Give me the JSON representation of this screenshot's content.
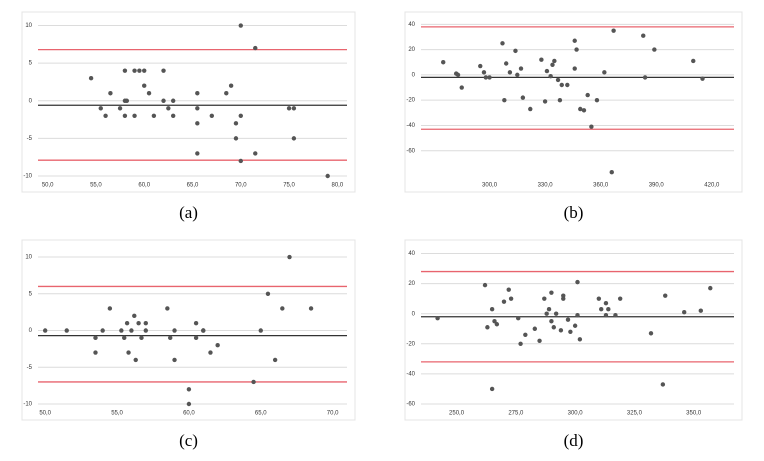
{
  "chart_data": [
    {
      "type": "scatter",
      "label": "(a)",
      "color": "#555555",
      "x": [
        54.5,
        55.5,
        56,
        56.5,
        57.5,
        58,
        58,
        58,
        58.2,
        59,
        59,
        59.5,
        60,
        60,
        60.5,
        61,
        62,
        62,
        62.5,
        63,
        63,
        65.5,
        65.5,
        65.5,
        65.5,
        67,
        68.5,
        69,
        69.5,
        69.5,
        70,
        70,
        70,
        71.5,
        71.5,
        75,
        75.5,
        75.5,
        79
      ],
      "values": [
        3,
        -1,
        -2,
        1,
        -1,
        0,
        4,
        -2,
        0,
        4,
        -2,
        4,
        2,
        4,
        1,
        -2,
        0,
        4,
        -1,
        -2,
        0,
        1,
        -3,
        -7,
        -1,
        -2,
        1,
        2,
        -3,
        -5,
        -2,
        -8,
        10,
        7,
        -7,
        -1,
        -1,
        -5,
        -10
      ],
      "xlim": [
        49,
        81
      ],
      "ylim": [
        -10,
        11
      ],
      "xticks": [
        {
          "value": 50,
          "label": "50,0"
        },
        {
          "value": 55,
          "label": "55,0"
        },
        {
          "value": 60,
          "label": "60,0"
        },
        {
          "value": 65,
          "label": "65,0"
        },
        {
          "value": 70,
          "label": "70,0"
        },
        {
          "value": 75,
          "label": "75,0"
        },
        {
          "value": 80,
          "label": "80,0"
        }
      ],
      "yticks": [
        10,
        5,
        0,
        -5,
        -10
      ],
      "grid": true,
      "reference_lines": [
        {
          "value": 6.8,
          "color": "#e8646e"
        },
        {
          "value": -0.6,
          "color": "#333333"
        },
        {
          "value": -7.9,
          "color": "#e8646e"
        }
      ]
    },
    {
      "type": "scatter",
      "label": "(b)",
      "color": "#555555",
      "x": [
        275,
        282,
        283,
        285,
        295,
        297,
        298,
        300,
        307,
        308,
        309,
        311,
        314,
        315,
        317,
        318,
        322,
        328,
        330,
        331,
        333,
        334,
        335,
        337,
        338,
        339,
        342,
        346,
        346,
        347,
        349,
        351,
        353,
        355,
        358,
        362,
        367,
        366,
        383,
        384,
        389,
        410,
        415
      ],
      "values": [
        10,
        1,
        0,
        -10,
        7,
        2,
        -2,
        -2,
        25,
        -20,
        9,
        2,
        19,
        0,
        5,
        -18,
        -27,
        12,
        -21,
        3,
        -1,
        8,
        11,
        -4,
        -20,
        -8,
        -8,
        27,
        5,
        20,
        -27,
        -28,
        -16,
        -41,
        -20,
        2,
        35,
        -77,
        31,
        -2,
        20,
        11,
        -3
      ],
      "xlim": [
        263,
        432
      ],
      "ylim": [
        -80,
        45
      ],
      "xticks": [
        {
          "value": 300,
          "label": "300,0"
        },
        {
          "value": 330,
          "label": "330,0"
        },
        {
          "value": 360,
          "label": "360,0"
        },
        {
          "value": 390,
          "label": "390,0"
        },
        {
          "value": 420,
          "label": "420,0"
        }
      ],
      "yticks": [
        40,
        20,
        0,
        -20,
        -40,
        -60
      ],
      "grid": true,
      "reference_lines": [
        {
          "value": 38,
          "color": "#e8646e"
        },
        {
          "value": -2,
          "color": "#333333"
        },
        {
          "value": -43,
          "color": "#e8646e"
        }
      ]
    },
    {
      "type": "scatter",
      "label": "(c)",
      "color": "#555555",
      "x": [
        50,
        51.5,
        53.5,
        53.5,
        54,
        54.5,
        55.3,
        55.5,
        55.7,
        55.8,
        56,
        56.2,
        56.3,
        56.5,
        56.7,
        57,
        57,
        58.5,
        58.7,
        59,
        59,
        60,
        60,
        60.5,
        60.5,
        61,
        61,
        61.5,
        62,
        64.5,
        65,
        65.5,
        66,
        66.5,
        67,
        68.5
      ],
      "values": [
        0,
        0,
        -1,
        -3,
        0,
        3,
        0,
        -1,
        1,
        -3,
        0,
        2,
        -4,
        1,
        -1,
        1,
        0,
        3,
        -1,
        -4,
        0,
        -8,
        -10,
        1,
        -1,
        0,
        0,
        -3,
        -2,
        -7,
        0,
        5,
        -4,
        3,
        10,
        3
      ],
      "xlim": [
        49.5,
        71
      ],
      "ylim": [
        -10,
        11.5
      ],
      "xticks": [
        {
          "value": 50,
          "label": "50,0"
        },
        {
          "value": 55,
          "label": "55,0"
        },
        {
          "value": 60,
          "label": "60,0"
        },
        {
          "value": 65,
          "label": "65,0"
        },
        {
          "value": 70,
          "label": "70,0"
        }
      ],
      "yticks": [
        10,
        5,
        0,
        -5,
        -10
      ],
      "grid": true,
      "reference_lines": [
        {
          "value": 6,
          "color": "#e8646e"
        },
        {
          "value": -0.7,
          "color": "#333333"
        },
        {
          "value": -7,
          "color": "#e8646e"
        }
      ]
    },
    {
      "type": "scatter",
      "label": "(d)",
      "color": "#555555",
      "x": [
        242,
        262,
        263,
        265,
        265,
        266,
        267,
        270,
        272,
        273,
        276,
        277,
        279,
        283,
        285,
        287,
        288,
        289,
        290,
        290,
        291,
        292,
        294,
        295,
        295,
        297,
        298,
        300,
        301,
        301,
        302,
        310,
        311,
        313,
        313,
        314,
        317,
        319,
        332,
        337,
        338,
        346,
        353,
        357
      ],
      "values": [
        -3,
        19,
        -9,
        3,
        -50,
        -5,
        -7,
        8,
        16,
        10,
        -3,
        -20,
        -14,
        -10,
        -18,
        10,
        0,
        3,
        -5,
        14,
        -9,
        0,
        -11,
        12,
        10,
        -4,
        -12,
        -8,
        21,
        -1,
        -17,
        10,
        3,
        -1,
        7,
        3,
        -1,
        10,
        -13,
        -47,
        12,
        1,
        2,
        17
      ],
      "xlim": [
        235,
        367
      ],
      "ylim": [
        -60,
        45
      ],
      "xticks": [
        {
          "value": 250,
          "label": "250,0"
        },
        {
          "value": 275,
          "label": "275,0"
        },
        {
          "value": 300,
          "label": "300,0"
        },
        {
          "value": 325,
          "label": "325,0"
        },
        {
          "value": 350,
          "label": "350,0"
        }
      ],
      "yticks": [
        40,
        20,
        0,
        -20,
        -40,
        -60
      ],
      "grid": true,
      "reference_lines": [
        {
          "value": 28,
          "color": "#e8646e"
        },
        {
          "value": -2,
          "color": "#333333"
        },
        {
          "value": -32,
          "color": "#e8646e"
        }
      ]
    }
  ]
}
